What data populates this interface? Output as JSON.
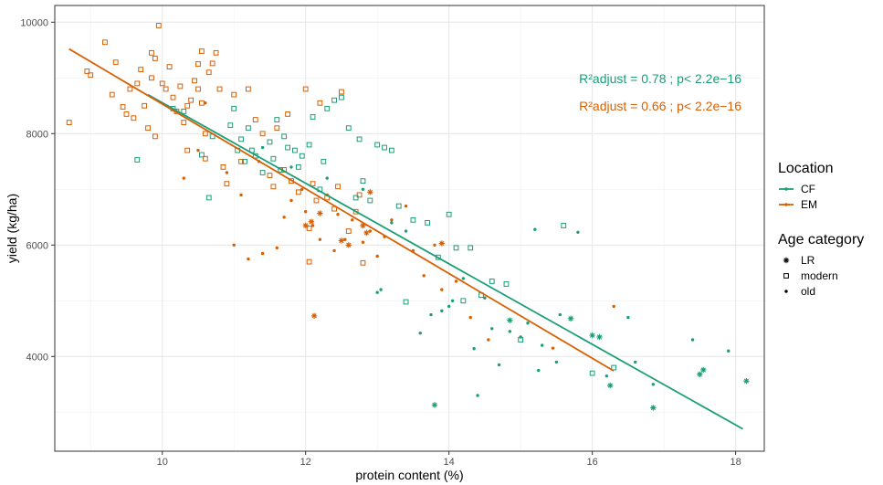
{
  "chart_data": {
    "type": "scatter",
    "title": "",
    "xlabel": "protein content (%)",
    "ylabel": "yield (kg/ha)",
    "xlim": [
      8.5,
      18.4
    ],
    "ylim": [
      2300,
      10300
    ],
    "x_ticks": [
      10,
      12,
      14,
      16,
      18
    ],
    "y_ticks": [
      4000,
      6000,
      8000,
      10000
    ],
    "grid": true,
    "legend_position": "right",
    "colors": {
      "CF": "#1b9e77",
      "EM": "#d95f02"
    },
    "legends": [
      {
        "title": "Location",
        "items": [
          {
            "label": "CF",
            "key": "CF"
          },
          {
            "label": "EM",
            "key": "EM"
          }
        ]
      },
      {
        "title": "Age category",
        "items": [
          {
            "label": "LR",
            "shape": "asterisk"
          },
          {
            "label": "modern",
            "shape": "square"
          },
          {
            "label": "old",
            "shape": "dot"
          }
        ]
      }
    ],
    "annotations": [
      {
        "text": "R²adjust = 0.78 ; p< 2.2e−16",
        "series": "CF"
      },
      {
        "text": "R²adjust = 0.66 ; p< 2.2e−16",
        "series": "EM"
      }
    ],
    "regression_lines": [
      {
        "series": "CF",
        "x": [
          9.8,
          18.1
        ],
        "y": [
          8700,
          2700
        ]
      },
      {
        "series": "EM",
        "x": [
          8.7,
          16.3
        ],
        "y": [
          9520,
          3740
        ]
      }
    ],
    "series": [
      {
        "location": "EM",
        "age": "modern",
        "points": [
          [
            8.7,
            8200
          ],
          [
            8.95,
            9120
          ],
          [
            9.0,
            9050
          ],
          [
            9.2,
            9640
          ],
          [
            9.3,
            8700
          ],
          [
            9.35,
            9280
          ],
          [
            9.45,
            8480
          ],
          [
            9.5,
            8350
          ],
          [
            9.55,
            8800
          ],
          [
            9.6,
            8280
          ],
          [
            9.65,
            8900
          ],
          [
            9.7,
            9150
          ],
          [
            9.75,
            8500
          ],
          [
            9.8,
            8100
          ],
          [
            9.85,
            9450
          ],
          [
            9.85,
            9000
          ],
          [
            9.9,
            9350
          ],
          [
            9.9,
            7950
          ],
          [
            9.95,
            9940
          ],
          [
            10.0,
            8900
          ],
          [
            10.05,
            8800
          ],
          [
            10.1,
            9200
          ],
          [
            10.15,
            8650
          ],
          [
            10.2,
            8400
          ],
          [
            10.25,
            8850
          ],
          [
            10.3,
            8200
          ],
          [
            10.35,
            7700
          ],
          [
            10.35,
            8500
          ],
          [
            10.4,
            8600
          ],
          [
            10.45,
            8950
          ],
          [
            10.5,
            9250
          ],
          [
            10.5,
            8800
          ],
          [
            10.55,
            9480
          ],
          [
            10.55,
            8550
          ],
          [
            10.6,
            8000
          ],
          [
            10.65,
            9100
          ],
          [
            10.7,
            9260
          ],
          [
            10.75,
            9450
          ],
          [
            10.6,
            7550
          ],
          [
            10.8,
            8800
          ],
          [
            10.85,
            7400
          ],
          [
            10.9,
            7100
          ],
          [
            11.0,
            8700
          ],
          [
            11.1,
            7500
          ],
          [
            11.2,
            8800
          ],
          [
            11.3,
            8250
          ],
          [
            11.4,
            8000
          ],
          [
            11.5,
            7250
          ],
          [
            11.55,
            7050
          ],
          [
            11.6,
            8100
          ],
          [
            11.7,
            7350
          ],
          [
            11.75,
            8350
          ],
          [
            11.8,
            7150
          ],
          [
            11.9,
            6950
          ],
          [
            12.0,
            8800
          ],
          [
            12.05,
            6300
          ],
          [
            12.05,
            5700
          ],
          [
            12.1,
            7100
          ],
          [
            12.15,
            6800
          ],
          [
            12.2,
            8550
          ],
          [
            12.3,
            6850
          ],
          [
            12.4,
            6650
          ],
          [
            12.45,
            7050
          ],
          [
            12.5,
            8750
          ],
          [
            12.6,
            6250
          ],
          [
            12.7,
            6600
          ],
          [
            12.75,
            6900
          ],
          [
            12.8,
            5680
          ]
        ]
      },
      {
        "location": "EM",
        "age": "old",
        "points": [
          [
            10.3,
            7200
          ],
          [
            10.5,
            7700
          ],
          [
            10.6,
            8550
          ],
          [
            10.9,
            7300
          ],
          [
            11.0,
            6000
          ],
          [
            11.1,
            6900
          ],
          [
            11.2,
            5750
          ],
          [
            11.35,
            7500
          ],
          [
            11.4,
            5850
          ],
          [
            11.6,
            5950
          ],
          [
            11.7,
            6500
          ],
          [
            11.8,
            6800
          ],
          [
            11.95,
            7000
          ],
          [
            12.0,
            6600
          ],
          [
            12.1,
            6350
          ],
          [
            12.2,
            6100
          ],
          [
            12.3,
            6900
          ],
          [
            12.4,
            5900
          ],
          [
            12.45,
            6550
          ],
          [
            12.55,
            6100
          ],
          [
            12.65,
            6450
          ],
          [
            12.8,
            6050
          ],
          [
            12.9,
            6250
          ],
          [
            13.0,
            5800
          ],
          [
            13.1,
            6150
          ],
          [
            13.2,
            6450
          ],
          [
            13.4,
            6700
          ],
          [
            13.5,
            5900
          ],
          [
            13.65,
            5450
          ],
          [
            13.8,
            6000
          ],
          [
            13.9,
            5200
          ],
          [
            14.1,
            5350
          ],
          [
            14.3,
            4700
          ],
          [
            14.55,
            4300
          ],
          [
            15.45,
            4150
          ],
          [
            16.3,
            4900
          ]
        ]
      },
      {
        "location": "EM",
        "age": "LR",
        "points": [
          [
            12.0,
            6350
          ],
          [
            12.08,
            6420
          ],
          [
            12.12,
            4730
          ],
          [
            12.2,
            6570
          ],
          [
            12.5,
            6080
          ],
          [
            12.8,
            6350
          ],
          [
            12.85,
            6220
          ],
          [
            12.9,
            6950
          ],
          [
            13.9,
            6030
          ],
          [
            12.6,
            6000
          ]
        ]
      },
      {
        "location": "CF",
        "age": "modern",
        "points": [
          [
            9.65,
            7530
          ],
          [
            10.15,
            8450
          ],
          [
            10.3,
            8400
          ],
          [
            10.55,
            7620
          ],
          [
            10.65,
            6850
          ],
          [
            10.7,
            7950
          ],
          [
            10.95,
            8150
          ],
          [
            11.0,
            8450
          ],
          [
            11.05,
            7700
          ],
          [
            11.1,
            7900
          ],
          [
            11.15,
            7500
          ],
          [
            11.2,
            8100
          ],
          [
            11.25,
            7700
          ],
          [
            11.3,
            7600
          ],
          [
            11.4,
            7300
          ],
          [
            11.5,
            7850
          ],
          [
            11.55,
            7550
          ],
          [
            11.6,
            8250
          ],
          [
            11.65,
            7350
          ],
          [
            11.7,
            7950
          ],
          [
            11.75,
            7750
          ],
          [
            11.85,
            7700
          ],
          [
            11.9,
            7400
          ],
          [
            11.95,
            7600
          ],
          [
            12.05,
            7800
          ],
          [
            12.1,
            8300
          ],
          [
            12.2,
            7000
          ],
          [
            12.25,
            7500
          ],
          [
            12.3,
            8450
          ],
          [
            12.4,
            8600
          ],
          [
            12.5,
            8650
          ],
          [
            12.6,
            8100
          ],
          [
            12.7,
            6850
          ],
          [
            12.75,
            7900
          ],
          [
            12.8,
            7150
          ],
          [
            12.9,
            6800
          ],
          [
            13.0,
            7800
          ],
          [
            13.1,
            7750
          ],
          [
            13.2,
            7700
          ],
          [
            13.3,
            6700
          ],
          [
            13.4,
            4980
          ],
          [
            13.5,
            6450
          ],
          [
            13.7,
            6400
          ],
          [
            13.85,
            5780
          ],
          [
            14.0,
            6550
          ],
          [
            14.1,
            5950
          ],
          [
            14.2,
            5000
          ],
          [
            14.3,
            5950
          ],
          [
            14.45,
            5100
          ],
          [
            14.6,
            5350
          ],
          [
            14.8,
            5300
          ],
          [
            15.0,
            4300
          ],
          [
            15.6,
            6350
          ],
          [
            16.0,
            3700
          ],
          [
            16.3,
            3800
          ]
        ]
      },
      {
        "location": "CF",
        "age": "old",
        "points": [
          [
            11.4,
            7750
          ],
          [
            11.8,
            7400
          ],
          [
            12.3,
            7200
          ],
          [
            12.8,
            7000
          ],
          [
            13.0,
            5150
          ],
          [
            13.2,
            6400
          ],
          [
            13.4,
            6250
          ],
          [
            13.6,
            4420
          ],
          [
            13.75,
            4750
          ],
          [
            13.9,
            4820
          ],
          [
            14.05,
            5000
          ],
          [
            14.2,
            5400
          ],
          [
            14.35,
            4140
          ],
          [
            14.4,
            3300
          ],
          [
            14.5,
            5050
          ],
          [
            14.6,
            4500
          ],
          [
            14.7,
            3850
          ],
          [
            14.85,
            4450
          ],
          [
            15.0,
            4350
          ],
          [
            15.1,
            4600
          ],
          [
            15.2,
            6280
          ],
          [
            15.3,
            4200
          ],
          [
            15.5,
            3900
          ],
          [
            15.55,
            4750
          ],
          [
            15.8,
            6230
          ],
          [
            16.2,
            3650
          ],
          [
            16.5,
            4700
          ],
          [
            16.6,
            3900
          ],
          [
            16.85,
            3500
          ],
          [
            17.4,
            4300
          ],
          [
            17.9,
            4100
          ],
          [
            13.05,
            5200
          ],
          [
            14.0,
            4900
          ],
          [
            15.25,
            3750
          ]
        ]
      },
      {
        "location": "CF",
        "age": "LR",
        "points": [
          [
            13.8,
            3130
          ],
          [
            14.85,
            4650
          ],
          [
            15.7,
            4680
          ],
          [
            16.0,
            4380
          ],
          [
            16.1,
            4350
          ],
          [
            16.25,
            3480
          ],
          [
            16.85,
            3080
          ],
          [
            17.5,
            3680
          ],
          [
            17.55,
            3760
          ],
          [
            18.15,
            3560
          ]
        ]
      }
    ]
  }
}
